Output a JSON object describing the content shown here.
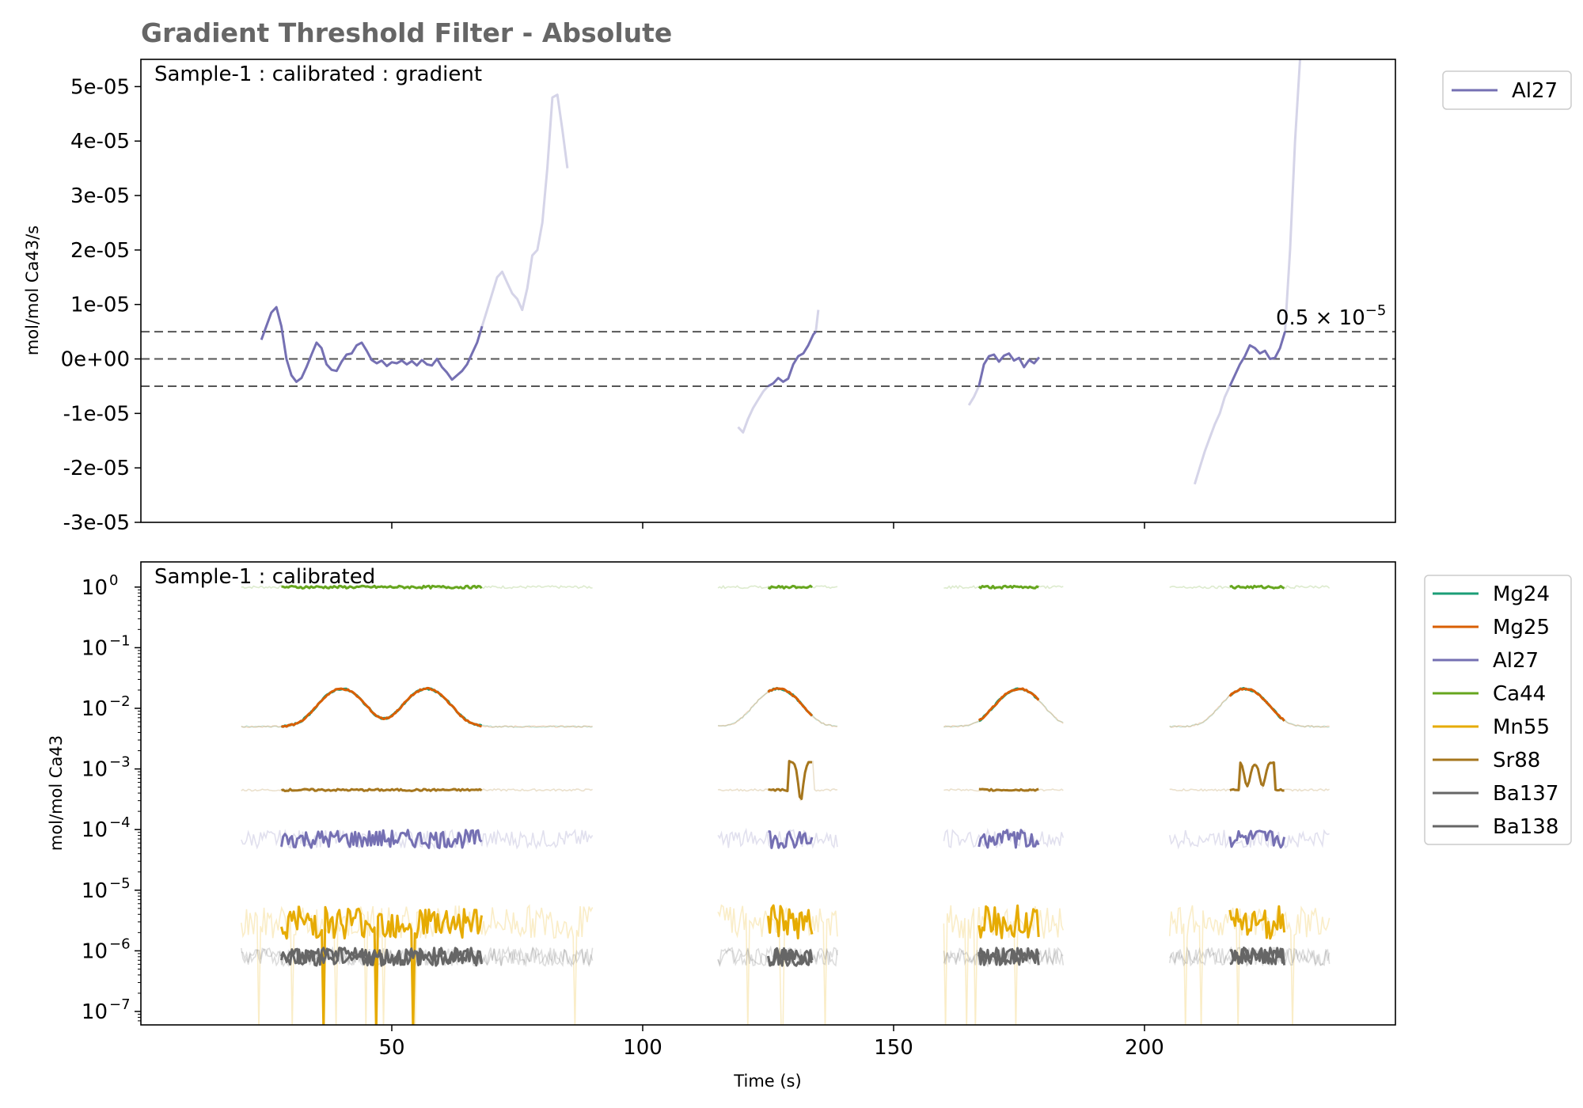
{
  "title": "Gradient Threshold Filter - Absolute",
  "colors": {
    "Mg24": "#1b9e77",
    "Mg25": "#d95f02",
    "Al27": "#7570b3",
    "Ca44": "#66a61e",
    "Mn55": "#e6ab02",
    "Sr88": "#a6761d",
    "Ba137": "#666666",
    "Ba138": "#666666",
    "threshold": "#555555"
  },
  "chart_data": [
    {
      "type": "line",
      "panel_label": "Sample-1 : calibrated : gradient",
      "ylabel": "mol/mol Ca43/s",
      "xlabel": "",
      "xlim": [
        0,
        250
      ],
      "ylim": [
        -3e-05,
        5.5e-05
      ],
      "xticks": [
        50,
        100,
        150,
        200
      ],
      "yticks": [
        {
          "v": 5e-05,
          "label": "5e-05"
        },
        {
          "v": 4e-05,
          "label": "4e-05"
        },
        {
          "v": 3e-05,
          "label": "3e-05"
        },
        {
          "v": 2e-05,
          "label": "2e-05"
        },
        {
          "v": 1e-05,
          "label": "1e-05"
        },
        {
          "v": 0,
          "label": "0e+00"
        },
        {
          "v": -1e-05,
          "label": "-1e-05"
        },
        {
          "v": -2e-05,
          "label": "-2e-05"
        },
        {
          "v": -3e-05,
          "label": "-3e-05"
        }
      ],
      "threshold_label": "0.5 × 10",
      "threshold_exp": "−5",
      "thresholds": [
        5e-06,
        0,
        -5e-06
      ],
      "legend": [
        "Al27"
      ],
      "legend_position": "outside-right-top",
      "series": [
        {
          "name": "Al27",
          "role": "active",
          "points": [
            [
              24,
              3.5e-06
            ],
            [
              25,
              6e-06
            ],
            [
              26,
              8.5e-06
            ],
            [
              27,
              9.5e-06
            ],
            [
              28,
              6e-06
            ],
            [
              29,
              0
            ],
            [
              30,
              -3e-06
            ],
            [
              31,
              -4.2e-06
            ],
            [
              32,
              -3.5e-06
            ],
            [
              33,
              -1.5e-06
            ],
            [
              34,
              8e-07
            ],
            [
              35,
              3e-06
            ],
            [
              36,
              2e-06
            ],
            [
              37,
              -1e-06
            ],
            [
              38,
              -2e-06
            ],
            [
              39,
              -2.2e-06
            ],
            [
              40,
              -5e-07
            ],
            [
              41,
              8e-07
            ],
            [
              42,
              1e-06
            ],
            [
              43,
              2.5e-06
            ],
            [
              44,
              3e-06
            ],
            [
              45,
              1.5e-06
            ],
            [
              46,
              -2e-07
            ],
            [
              47,
              -8e-07
            ],
            [
              48,
              -3e-07
            ],
            [
              49,
              -1.3e-06
            ],
            [
              50,
              -6e-07
            ],
            [
              51,
              -8e-07
            ],
            [
              52,
              -3e-07
            ],
            [
              53,
              -1e-06
            ],
            [
              54,
              -4e-07
            ],
            [
              55,
              -1.2e-06
            ],
            [
              56,
              -2e-07
            ],
            [
              57,
              -1e-06
            ],
            [
              58,
              -1.2e-06
            ],
            [
              59,
              0
            ],
            [
              60,
              -1.5e-06
            ],
            [
              61,
              -2.5e-06
            ],
            [
              62,
              -3.8e-06
            ],
            [
              63,
              -3e-06
            ],
            [
              64,
              -2.2e-06
            ],
            [
              65,
              -1e-06
            ],
            [
              66,
              1e-06
            ],
            [
              67,
              3e-06
            ],
            [
              68,
              6e-06
            ]
          ]
        },
        {
          "name": "Al27",
          "role": "excluded",
          "points": [
            [
              68,
              6e-06
            ],
            [
              69,
              9e-06
            ],
            [
              70,
              1.2e-05
            ],
            [
              71,
              1.5e-05
            ],
            [
              72,
              1.6e-05
            ],
            [
              73,
              1.4e-05
            ],
            [
              74,
              1.2e-05
            ],
            [
              75,
              1.1e-05
            ],
            [
              76,
              9e-06
            ],
            [
              77,
              1.3e-05
            ],
            [
              78,
              1.9e-05
            ],
            [
              79,
              2e-05
            ],
            [
              80,
              2.5e-05
            ],
            [
              81,
              3.5e-05
            ],
            [
              82,
              4.8e-05
            ],
            [
              83,
              4.85e-05
            ],
            [
              84,
              4.2e-05
            ],
            [
              85,
              3.5e-05
            ]
          ]
        },
        {
          "name": "Al27",
          "role": "excluded",
          "points": [
            [
              119,
              -1.25e-05
            ],
            [
              120,
              -1.35e-05
            ],
            [
              121,
              -1.1e-05
            ],
            [
              122,
              -9e-06
            ],
            [
              123,
              -7.5e-06
            ],
            [
              124,
              -6e-06
            ],
            [
              125,
              -5e-06
            ]
          ]
        },
        {
          "name": "Al27",
          "role": "active",
          "points": [
            [
              125,
              -5e-06
            ],
            [
              126,
              -4.5e-06
            ],
            [
              127,
              -3.5e-06
            ],
            [
              128,
              -4.2e-06
            ],
            [
              129,
              -3.6e-06
            ],
            [
              130,
              -1e-06
            ],
            [
              131,
              5e-07
            ],
            [
              132,
              1e-06
            ],
            [
              133,
              2.5e-06
            ],
            [
              134,
              4.5e-06
            ],
            [
              134.5,
              5e-06
            ]
          ]
        },
        {
          "name": "Al27",
          "role": "excluded",
          "points": [
            [
              134.5,
              5e-06
            ],
            [
              135,
              9e-06
            ]
          ]
        },
        {
          "name": "Al27",
          "role": "excluded",
          "points": [
            [
              165,
              -8.5e-06
            ],
            [
              166,
              -7e-06
            ],
            [
              167,
              -5e-06
            ]
          ]
        },
        {
          "name": "Al27",
          "role": "active",
          "points": [
            [
              167,
              -5e-06
            ],
            [
              168,
              -1e-06
            ],
            [
              169,
              5e-07
            ],
            [
              170,
              8e-07
            ],
            [
              171,
              -5e-07
            ],
            [
              172,
              6e-07
            ],
            [
              173,
              1e-06
            ],
            [
              174,
              -3e-07
            ],
            [
              175,
              2e-07
            ],
            [
              176,
              -1.5e-06
            ],
            [
              177,
              -2e-07
            ],
            [
              178,
              -8e-07
            ],
            [
              179,
              3e-07
            ]
          ]
        },
        {
          "name": "Al27",
          "role": "excluded",
          "points": [
            [
              210,
              -2.3e-05
            ],
            [
              211,
              -2e-05
            ],
            [
              212,
              -1.7e-05
            ],
            [
              213,
              -1.45e-05
            ],
            [
              214,
              -1.2e-05
            ],
            [
              215,
              -1e-05
            ],
            [
              216,
              -7e-06
            ],
            [
              217,
              -5e-06
            ]
          ]
        },
        {
          "name": "Al27",
          "role": "active",
          "points": [
            [
              217,
              -5e-06
            ],
            [
              218,
              -3e-06
            ],
            [
              219,
              -1e-06
            ],
            [
              220,
              5e-07
            ],
            [
              221,
              2.5e-06
            ],
            [
              222,
              2e-06
            ],
            [
              223,
              1e-06
            ],
            [
              224,
              1.5e-06
            ],
            [
              225,
              0
            ],
            [
              226,
              2e-07
            ],
            [
              227,
              2e-06
            ],
            [
              228,
              5e-06
            ]
          ]
        },
        {
          "name": "Al27",
          "role": "excluded",
          "points": [
            [
              228,
              5e-06
            ],
            [
              229,
              2e-05
            ],
            [
              230,
              4e-05
            ],
            [
              231,
              5.5e-05
            ]
          ]
        }
      ]
    },
    {
      "type": "line",
      "panel_label": "Sample-1 : calibrated",
      "ylabel": "mol/mol Ca43",
      "xlabel": "Time (s)",
      "yscale": "log",
      "xlim": [
        0,
        250
      ],
      "ylim": [
        6e-08,
        2.6
      ],
      "xticks": [
        50,
        100,
        150,
        200
      ],
      "ytick_exponents": [
        0,
        -1,
        -2,
        -3,
        -4,
        -5,
        -6,
        -7
      ],
      "legend": [
        "Mg24",
        "Mg25",
        "Al27",
        "Ca44",
        "Mn55",
        "Sr88",
        "Ba137",
        "Ba138"
      ],
      "legend_position": "outside-right-top",
      "segments": [
        {
          "ablation": [
            20,
            90
          ],
          "active": [
            28,
            68
          ]
        },
        {
          "ablation": [
            115,
            139
          ],
          "active": [
            125,
            134
          ]
        },
        {
          "ablation": [
            160,
            184
          ],
          "active": [
            167,
            179
          ]
        },
        {
          "ablation": [
            205,
            237
          ],
          "active": [
            217,
            228
          ]
        }
      ],
      "series_levels": {
        "Ca44": {
          "approx": 1.0
        },
        "Mg24": {
          "approx": "1e-2 to 2e-2",
          "peaks_s": [
            40,
            57,
            127,
            175,
            220
          ]
        },
        "Mg25": {
          "approx": "1e-2 to 2e-2",
          "peaks_s": [
            40,
            57,
            127,
            175,
            220
          ]
        },
        "Sr88": {
          "approx": 0.00045
        },
        "Al27": {
          "approx": 7e-05
        },
        "Mn55": {
          "approx": 3e-06
        },
        "Ba137": {
          "approx": 8e-07
        },
        "Ba138": {
          "approx": 8e-07
        }
      }
    }
  ]
}
